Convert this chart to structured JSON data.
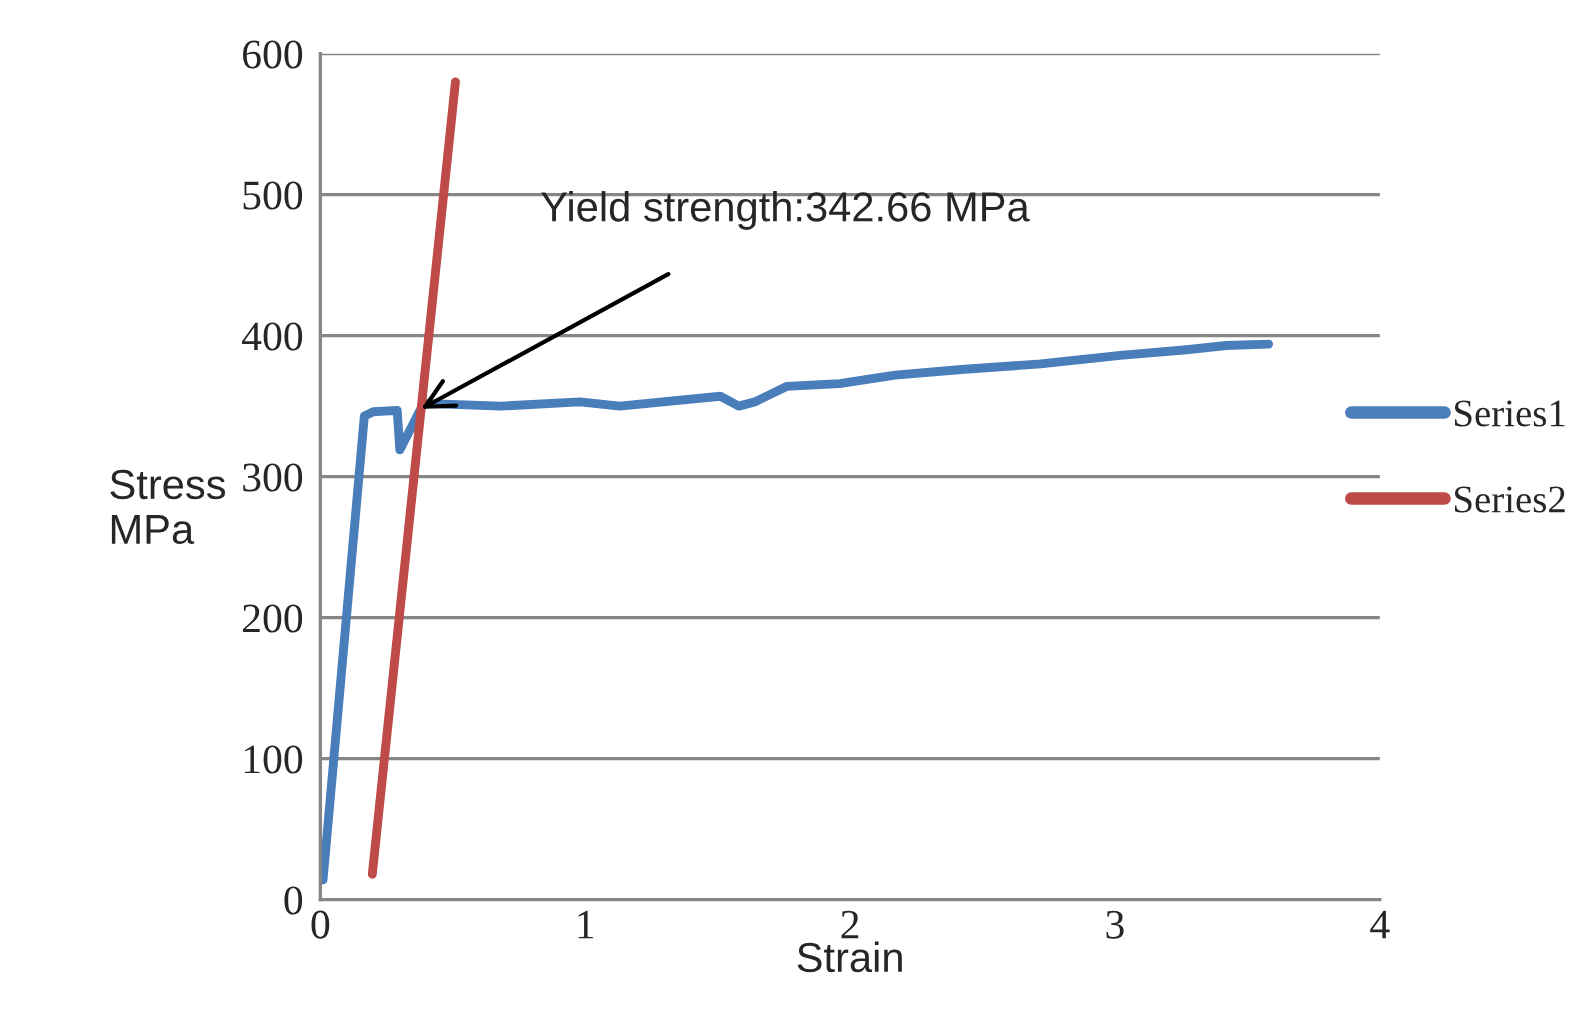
{
  "chart_data": {
    "type": "line",
    "xlabel": "Strain",
    "ylabel": "Stress\nMPa",
    "xlim": [
      0,
      4
    ],
    "xticks": [
      0,
      1,
      2,
      3,
      4
    ],
    "ylim": [
      0,
      600
    ],
    "yticks": [
      0,
      100,
      200,
      300,
      400,
      500,
      600
    ],
    "grid": "y",
    "legend": "right",
    "marker": "none",
    "line_style": "solid",
    "annotations": [
      {
        "text": "Yield strength:342.66 MPa",
        "x": 0.38,
        "y": 348
      }
    ],
    "series": [
      {
        "name": "Series1",
        "color": "#4a7ebb",
        "x": [
          0.01,
          0.166,
          0.2,
          0.29,
          0.3,
          0.39,
          0.68,
          0.98,
          1.13,
          1.51,
          1.58,
          1.64,
          1.76,
          1.96,
          2.17,
          2.42,
          2.72,
          3.02,
          3.27,
          3.42,
          3.58
        ],
        "values": [
          14,
          343,
          346,
          347,
          319,
          352,
          350,
          353,
          350,
          357,
          350,
          353,
          364,
          366,
          372,
          376,
          380,
          386,
          390,
          393,
          394
        ]
      },
      {
        "name": "Series2",
        "color": "#be4b48",
        "x": [
          0.196,
          0.51
        ],
        "values": [
          18,
          580
        ]
      }
    ]
  }
}
